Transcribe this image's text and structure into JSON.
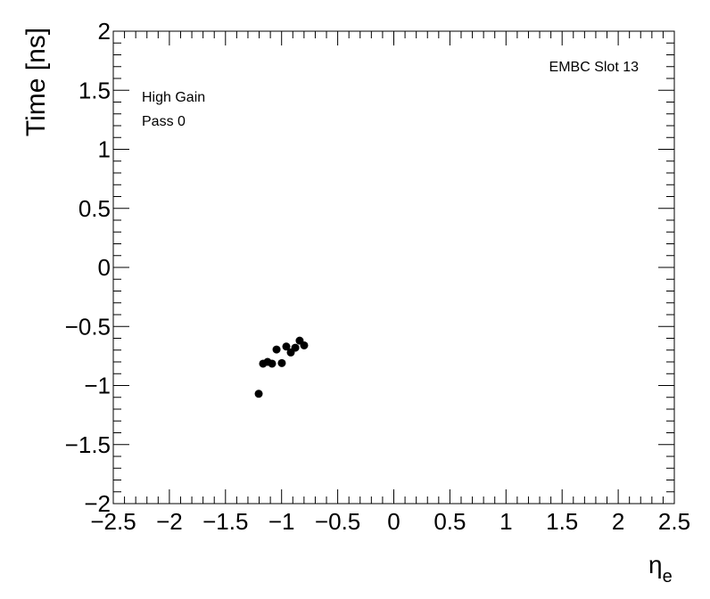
{
  "chart_data": {
    "type": "scatter",
    "y_label": "Time [ns]",
    "x_label": "η",
    "x_label_sub": "e",
    "annotations": [
      "EMBC Slot 13",
      "High Gain",
      "Pass 0"
    ],
    "color": "#000000",
    "x": [
      -1.204,
      -1.165,
      -1.125,
      -1.085,
      -1.045,
      -0.998,
      -0.958,
      -0.918,
      -0.878,
      -0.839,
      -0.799
    ],
    "values": [
      -1.07,
      -0.815,
      -0.8,
      -0.815,
      -0.695,
      -0.81,
      -0.67,
      -0.72,
      -0.68,
      -0.62,
      -0.66
    ],
    "xlim": [
      -2.5,
      2.5
    ],
    "ylim": [
      -2,
      2
    ],
    "xticks": [
      {
        "value": -2.5,
        "label": "−2.5"
      },
      {
        "value": -2,
        "label": "−2"
      },
      {
        "value": -1.5,
        "label": "−1.5"
      },
      {
        "value": -1,
        "label": "−1"
      },
      {
        "value": -0.5,
        "label": "−0.5"
      },
      0,
      0.5,
      1,
      1.5,
      2,
      2.5
    ],
    "yticks": [
      {
        "value": -2,
        "label": "−2"
      },
      {
        "value": -1.5,
        "label": "−1.5"
      },
      {
        "value": -1,
        "label": "−1"
      },
      {
        "value": -0.5,
        "label": "−0.5"
      },
      0,
      0.5,
      1,
      1.5,
      2
    ]
  }
}
